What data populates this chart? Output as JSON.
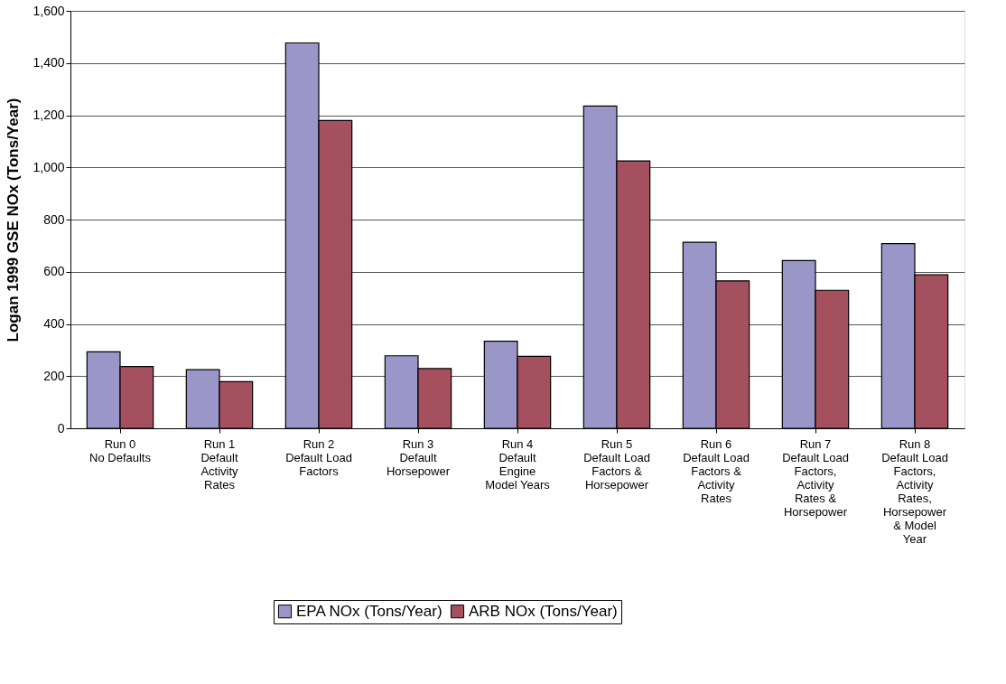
{
  "chart_data": {
    "type": "bar",
    "ylabel": "Logan 1999 GSE NOx (Tons/Year)",
    "categories": [
      "Run 0\nNo Defaults",
      "Run 1\nDefault\nActivity\nRates",
      "Run 2\nDefault Load\nFactors",
      "Run 3\nDefault\nHorsepower",
      "Run 4\nDefault\nEngine\nModel Years",
      "Run 5\nDefault Load\nFactors &\nHorsepower",
      "Run 6\nDefault Load\nFactors &\nActivity\nRates",
      "Run 7\nDefault Load\nFactors,\nActivity\nRates &\nHorsepower",
      "Run 8\nDefault Load\nFactors,\nActivity\nRates,\nHorsepower\n& Model\nYear"
    ],
    "series": [
      {
        "name": "EPA NOx (Tons/Year)",
        "color": "#9b96c8",
        "values": [
          293,
          225,
          1477,
          278,
          334,
          1235,
          713,
          643,
          708
        ]
      },
      {
        "name": "ARB NOx (Tons/Year)",
        "color": "#a5505e",
        "values": [
          237,
          179,
          1180,
          229,
          276,
          1025,
          565,
          529,
          588
        ]
      }
    ],
    "ylim": [
      0,
      1600
    ],
    "yticks": [
      0,
      200,
      400,
      600,
      800,
      {
        "value": 1000,
        "label": "1,000"
      },
      {
        "value": 1200,
        "label": "1,200"
      },
      {
        "value": 1400,
        "label": "1,400"
      },
      {
        "value": 1600,
        "label": "1,600"
      }
    ],
    "grid": "y",
    "legend": "bottom"
  }
}
